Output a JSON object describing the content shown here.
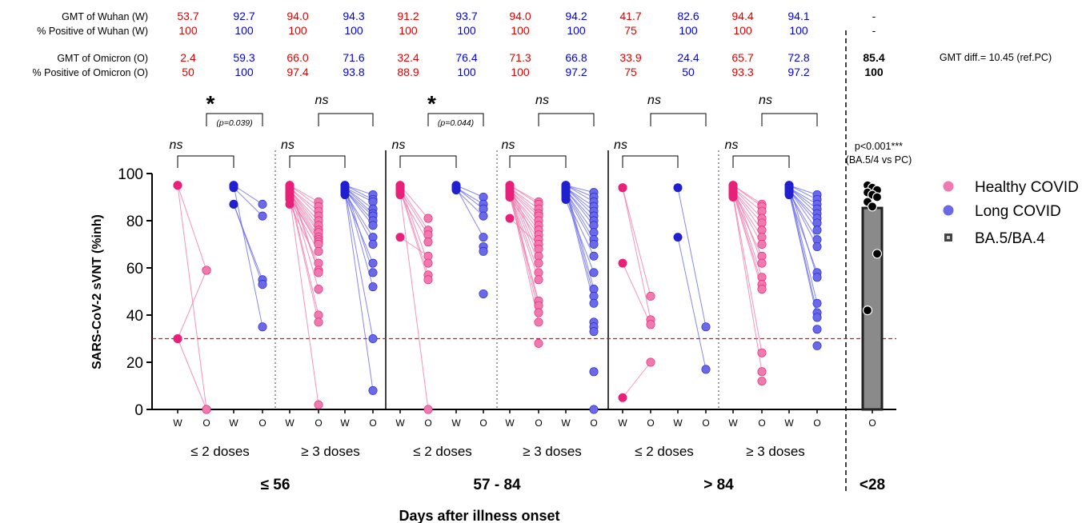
{
  "chart_data": {
    "type": "scatter",
    "ylabel": "SARS-CoV-2 sVNT (%inh)",
    "xlabel": "Days after illness onset",
    "ylim": [
      0,
      100
    ],
    "yticks": [
      0,
      20,
      40,
      60,
      80,
      100
    ],
    "cutoff": 30,
    "colors": {
      "healthy": "#e8207a",
      "healthy_light": "#f07aae",
      "long": "#2020d0",
      "long_light": "#6a6ae8",
      "bar": "#8a8a8a",
      "gmt_wuhan_text": "#e00000",
      "gmt_omicron_text": "#0000e0",
      "cutoff_line": "#e01010"
    },
    "legend": {
      "position": "right",
      "items": [
        {
          "label": "Healthy COVID",
          "marker": "circle",
          "color": "#f07aae"
        },
        {
          "label": "Long COVID",
          "marker": "circle",
          "color": "#6a6ae8"
        },
        {
          "label": "BA.5/BA.4",
          "marker": "square",
          "color": "#444444"
        }
      ]
    },
    "row_labels": [
      "GMT of Wuhan (W)",
      "% Positive of Wuhan (W)",
      "GMT of Omicron (O)",
      "% Positive of Omicron (O)"
    ],
    "gmt_wuhan": [
      "53.7",
      "92.7",
      "94.0",
      "94.3",
      "91.2",
      "93.7",
      "94.0",
      "94.2",
      "41.7",
      "82.6",
      "94.4",
      "94.1"
    ],
    "pos_wuhan": [
      "100",
      "100",
      "100",
      "100",
      "100",
      "100",
      "100",
      "100",
      "75",
      "100",
      "100",
      "100"
    ],
    "gmt_omicron": [
      "2.4",
      "59.3",
      "66.0",
      "71.6",
      "32.4",
      "76.4",
      "71.3",
      "66.8",
      "33.9",
      "24.4",
      "65.7",
      "72.8"
    ],
    "pos_omicron": [
      "50",
      "100",
      "97.4",
      "93.8",
      "88.9",
      "100",
      "100",
      "97.2",
      "75",
      "50",
      "93.3",
      "97.2"
    ],
    "pc_column": {
      "gmt_wuhan": "-",
      "pos_wuhan": "-",
      "gmt_omicron": "85.4",
      "pos_omicron": "100"
    },
    "gmt_diff_note": "GMT diff.= 10.45 (ref.PC)",
    "pc_pvalue": [
      "p<0.001***",
      "(BA.5/4 vs PC)"
    ],
    "x_tick_labels": [
      "W",
      "O",
      "W",
      "O",
      "W",
      "O",
      "W",
      "O",
      "W",
      "O",
      "W",
      "O",
      "W",
      "O",
      "W",
      "O",
      "W",
      "O",
      "W",
      "O",
      "W",
      "O",
      "W",
      "O",
      "O"
    ],
    "dose_labels": [
      "≤ 2 doses",
      "≥ 3 doses",
      "≤ 2 doses",
      "≥ 3 doses",
      "≤ 2 doses",
      "≥ 3 doses"
    ],
    "period_labels": [
      "≤ 56",
      "57 - 84",
      "> 84",
      "<28"
    ],
    "comparisons": [
      {
        "label": "ns",
        "p": ""
      },
      {
        "label": "ns",
        "p": ""
      },
      {
        "label": "ns",
        "p": ""
      },
      {
        "label": "ns",
        "p": ""
      },
      {
        "label": "ns",
        "p": ""
      },
      {
        "label": "ns",
        "p": ""
      },
      {
        "label": "*",
        "p": "(p=0.039)"
      },
      {
        "label": "ns",
        "p": ""
      },
      {
        "label": "*",
        "p": "(p=0.044)"
      },
      {
        "label": "ns",
        "p": ""
      },
      {
        "label": "ns",
        "p": ""
      },
      {
        "label": "ns",
        "p": ""
      }
    ],
    "groups": [
      {
        "period": "≤ 56",
        "doses": "≤ 2 doses",
        "cohort": "Healthy COVID",
        "w": [
          95,
          95,
          30,
          30
        ],
        "o": [
          59,
          0,
          59,
          0
        ]
      },
      {
        "period": "≤ 56",
        "doses": "≤ 2 doses",
        "cohort": "Long COVID",
        "w": [
          95,
          94,
          87,
          87,
          95
        ],
        "o": [
          87,
          82,
          55,
          53,
          35
        ]
      },
      {
        "period": "≤ 56",
        "doses": "≥ 3 doses",
        "cohort": "Healthy COVID",
        "w": [
          95,
          95,
          94,
          94,
          93,
          93,
          93,
          92,
          92,
          91,
          90,
          90,
          89,
          87,
          95,
          94,
          93,
          92,
          91,
          90
        ],
        "o": [
          88,
          86,
          84,
          82,
          80,
          78,
          76,
          75,
          73,
          72,
          71,
          70,
          67,
          62,
          59,
          58,
          51,
          40,
          37,
          2
        ]
      },
      {
        "period": "≤ 56",
        "doses": "≥ 3 doses",
        "cohort": "Long COVID",
        "w": [
          95,
          95,
          94,
          94,
          94,
          93,
          93,
          93,
          92,
          92,
          91,
          95,
          94,
          93,
          92
        ],
        "o": [
          91,
          89,
          88,
          85,
          83,
          82,
          80,
          78,
          73,
          70,
          62,
          58,
          52,
          30,
          8
        ]
      },
      {
        "period": "57 - 84",
        "doses": "≤ 2 doses",
        "cohort": "Healthy COVID",
        "w": [
          95,
          94,
          93,
          91,
          73,
          95,
          94,
          93,
          92
        ],
        "o": [
          81,
          76,
          74,
          71,
          65,
          62,
          57,
          55,
          0
        ]
      },
      {
        "period": "57 - 84",
        "doses": "≤ 2 doses",
        "cohort": "Long COVID",
        "w": [
          95,
          94,
          94,
          93,
          94
        ],
        "o": [
          90,
          87,
          85,
          82,
          73,
          69,
          67,
          49
        ]
      },
      {
        "period": "57 - 84",
        "doses": "≥ 3 doses",
        "cohort": "Healthy COVID",
        "w": [
          95,
          95,
          94,
          94,
          93,
          93,
          92,
          92,
          91,
          90,
          81,
          95,
          94,
          93,
          92,
          91,
          90,
          94,
          93,
          92
        ],
        "o": [
          88,
          87,
          85,
          83,
          82,
          80,
          78,
          76,
          74,
          72,
          70,
          68,
          65,
          62,
          58,
          55,
          46,
          44,
          41,
          37,
          28
        ]
      },
      {
        "period": "57 - 84",
        "doses": "≥ 3 doses",
        "cohort": "Long COVID",
        "w": [
          95,
          95,
          95,
          94,
          94,
          94,
          93,
          93,
          92,
          92,
          91,
          90,
          89,
          95,
          94,
          93
        ],
        "o": [
          92,
          90,
          88,
          86,
          84,
          82,
          80,
          78,
          75,
          72,
          70,
          65,
          58,
          51,
          48,
          45,
          37,
          35,
          33,
          16,
          0
        ]
      },
      {
        "period": "> 84",
        "doses": "≤ 2 doses",
        "cohort": "Healthy COVID",
        "w": [
          94,
          94,
          62,
          5
        ],
        "o": [
          48,
          38,
          36,
          20
        ]
      },
      {
        "period": "> 84",
        "doses": "≤ 2 doses",
        "cohort": "Long COVID",
        "w": [
          94,
          73
        ],
        "o": [
          35,
          17
        ]
      },
      {
        "period": "> 84",
        "doses": "≥ 3 doses",
        "cohort": "Healthy COVID",
        "w": [
          95,
          95,
          94,
          94,
          93,
          93,
          92,
          92,
          91,
          95,
          94,
          93,
          92,
          91,
          90
        ],
        "o": [
          87,
          86,
          84,
          81,
          79,
          76,
          73,
          70,
          65,
          62,
          56,
          53,
          51,
          24,
          16,
          12
        ]
      },
      {
        "period": "> 84",
        "doses": "≥ 3 doses",
        "cohort": "Long COVID",
        "w": [
          95,
          95,
          94,
          94,
          94,
          93,
          93,
          93,
          92,
          92,
          91,
          95,
          94,
          93,
          92
        ],
        "o": [
          91,
          89,
          87,
          85,
          83,
          81,
          79,
          76,
          72,
          69,
          58,
          56,
          45,
          41,
          39,
          34,
          27
        ]
      }
    ],
    "pc": {
      "period": "<28",
      "label": "BA.5/BA.4",
      "bar_value": 85.4,
      "points": [
        95,
        94,
        93,
        92,
        91,
        90,
        88,
        86,
        66,
        42
      ]
    }
  }
}
